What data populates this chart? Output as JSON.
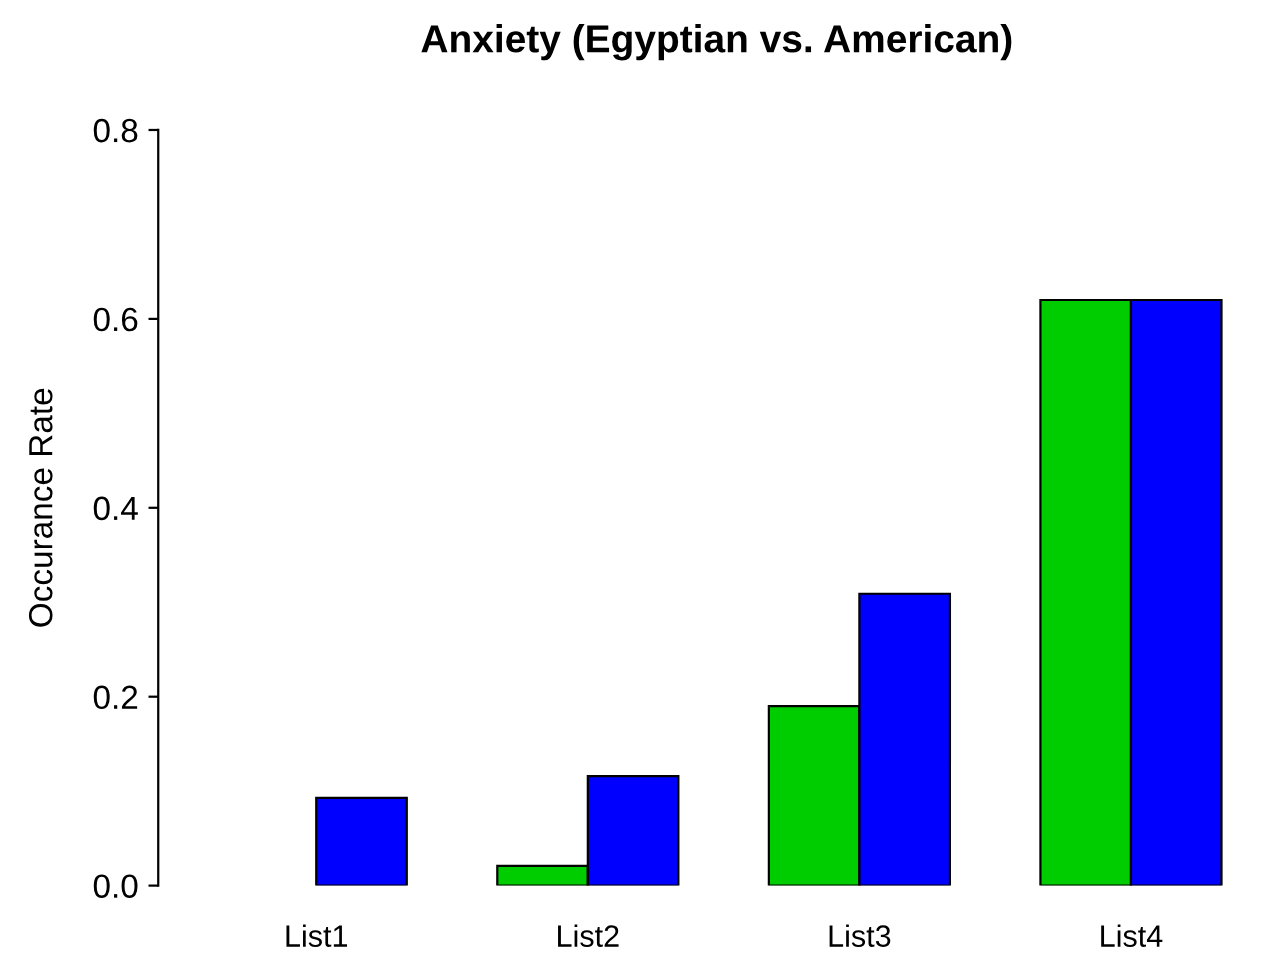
{
  "chart_data": {
    "type": "bar",
    "title": "Anxiety (Egyptian vs. American)",
    "ylabel": "Occurance Rate",
    "categories": [
      "List1",
      "List2",
      "List3",
      "List4"
    ],
    "series": [
      {
        "color": "#00cd00",
        "values": [
          null,
          0.021,
          0.19,
          0.62
        ]
      },
      {
        "color": "#0000ff",
        "values": [
          0.093,
          0.116,
          0.309,
          0.62
        ]
      }
    ],
    "ylim": [
      0,
      0.8
    ],
    "yticks": [
      {
        "value": 0,
        "label": "0.0"
      },
      {
        "value": 0.2,
        "label": "0.2"
      },
      {
        "value": 0.4,
        "label": "0.4"
      },
      {
        "value": 0.6,
        "label": "0.6"
      },
      {
        "value": 0.8,
        "label": "0.8"
      }
    ],
    "grid": false
  }
}
